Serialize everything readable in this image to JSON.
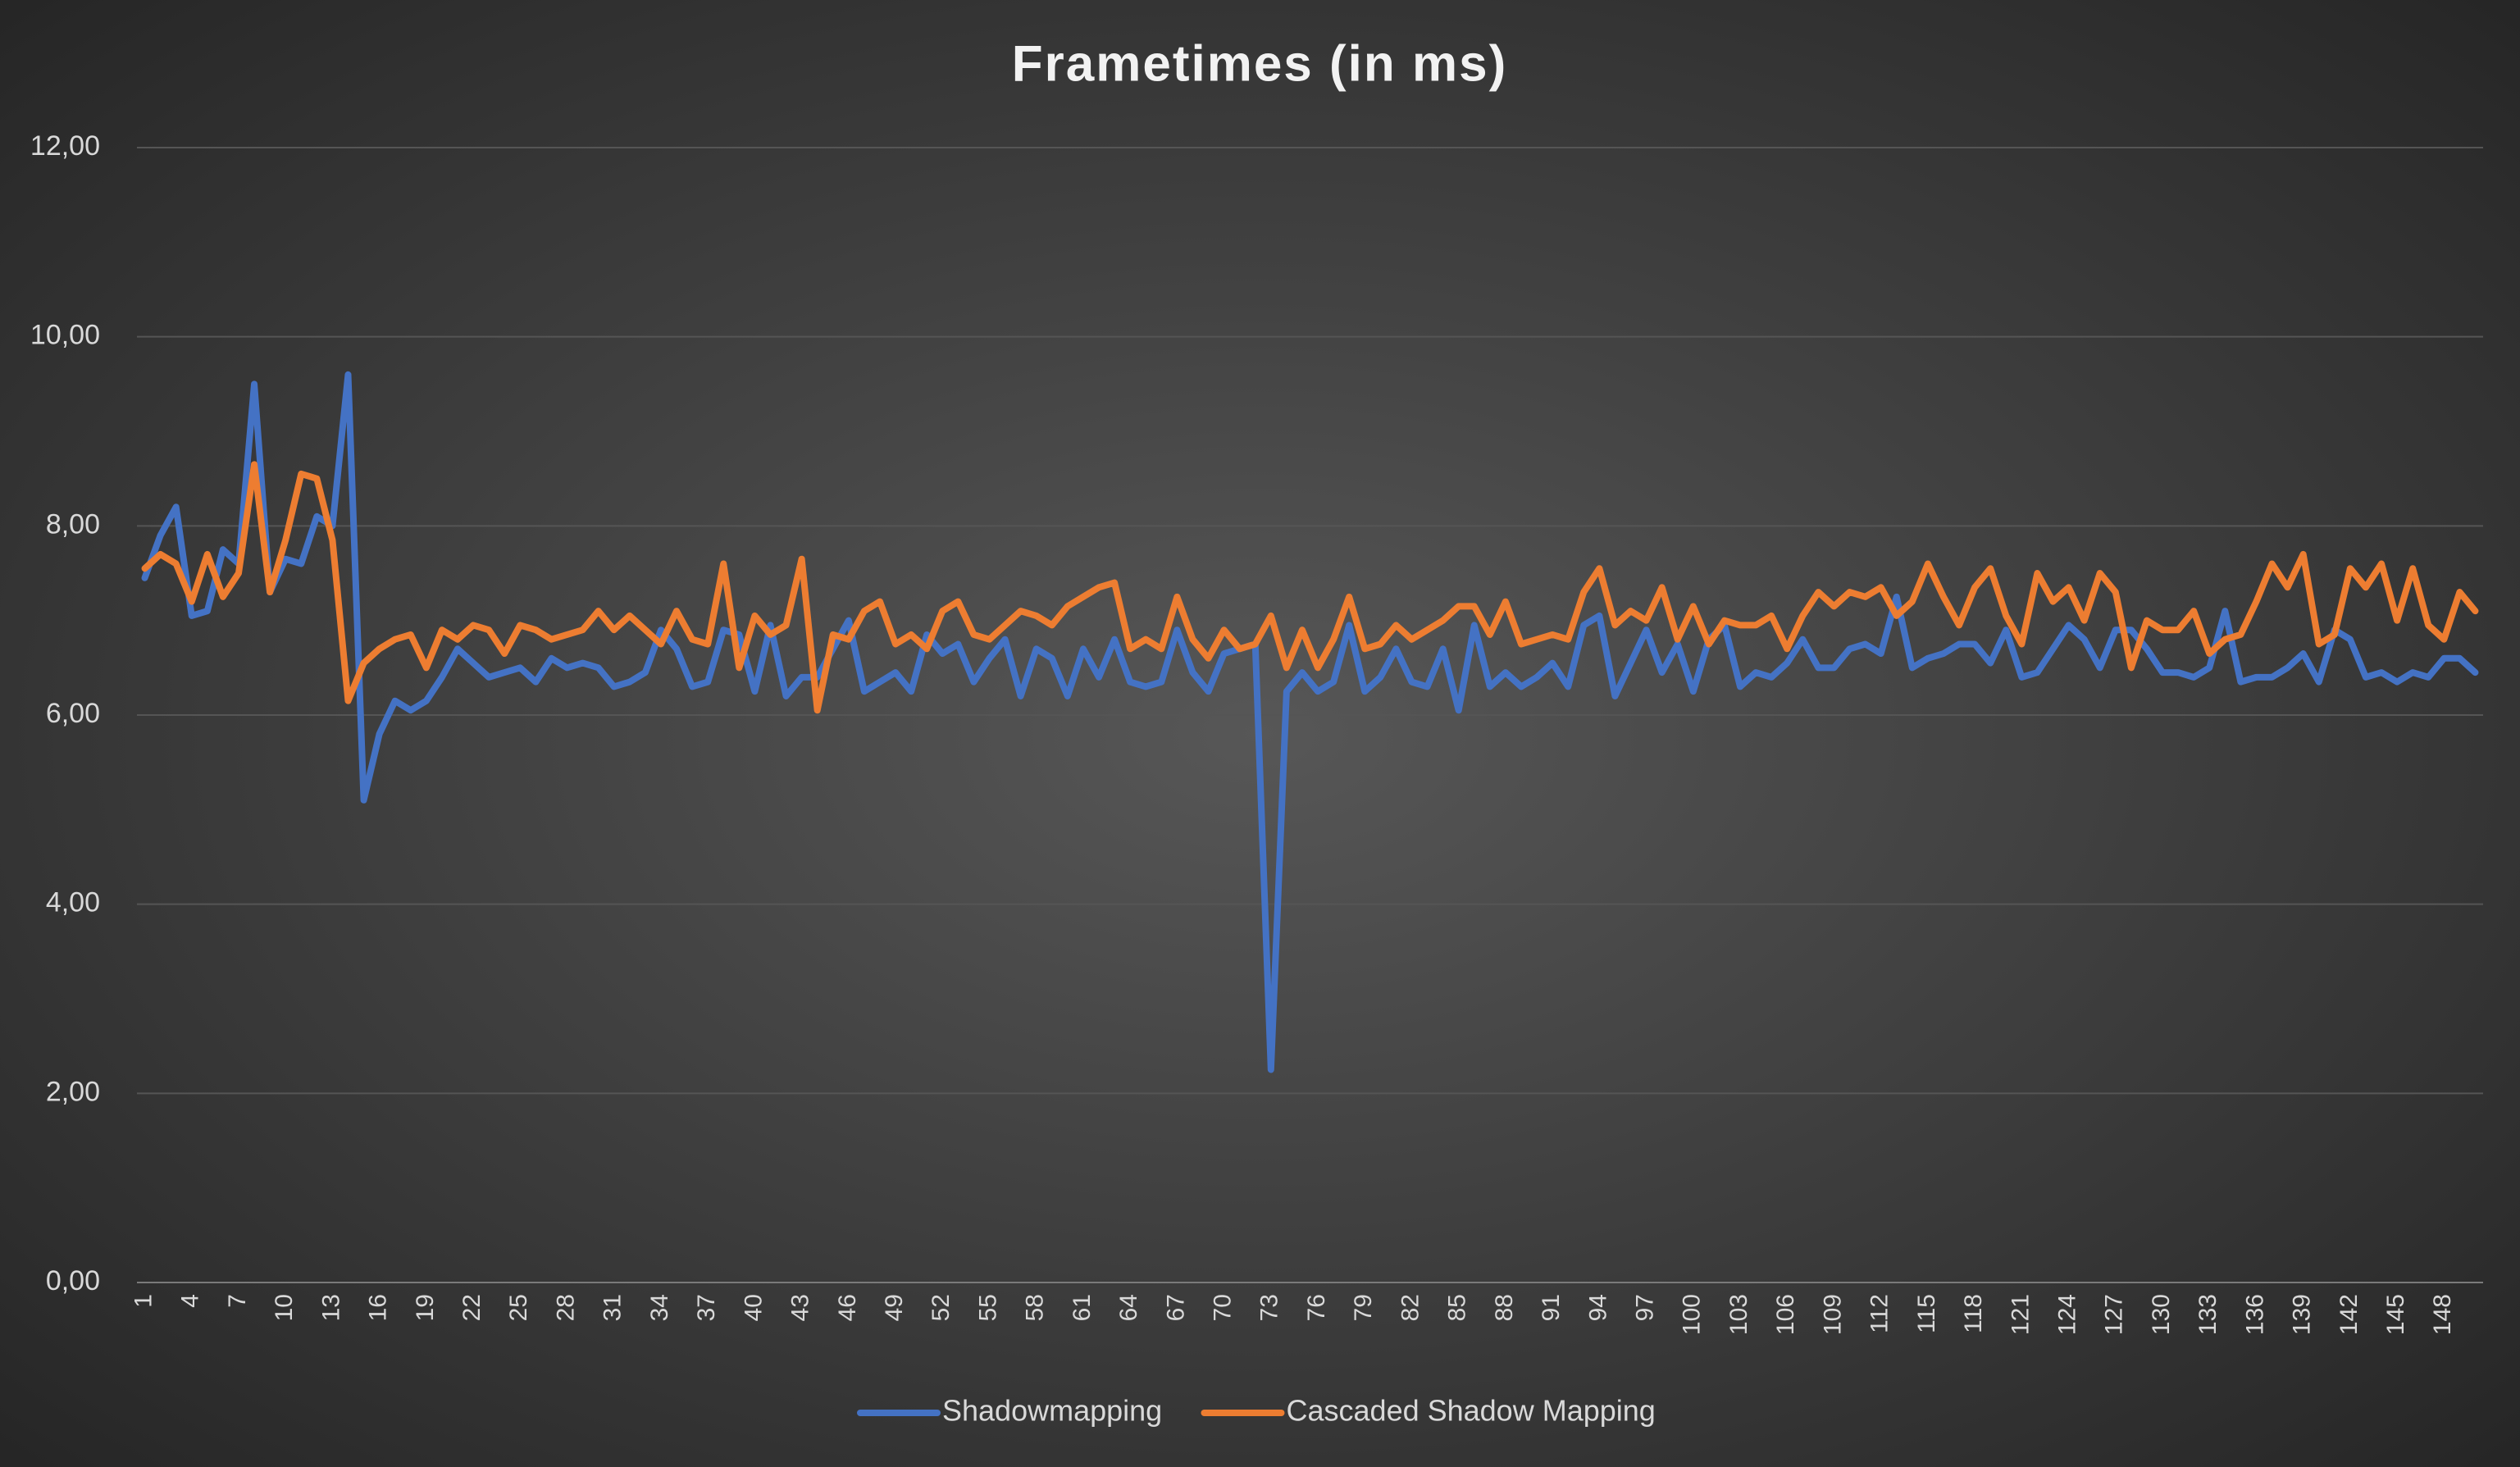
{
  "chart_data": {
    "type": "line",
    "title": "Frametimes (in ms)",
    "categories": [
      1,
      null,
      null,
      4,
      null,
      null,
      7,
      null,
      null,
      10,
      null,
      null,
      13,
      null,
      null,
      16,
      null,
      null,
      19,
      null,
      null,
      22,
      null,
      null,
      25,
      null,
      null,
      28,
      null,
      null,
      31,
      null,
      null,
      34,
      null,
      null,
      37,
      null,
      null,
      40,
      null,
      null,
      43,
      null,
      null,
      46,
      null,
      null,
      49,
      null,
      null,
      52,
      null,
      null,
      55,
      null,
      null,
      58,
      null,
      null,
      61,
      null,
      null,
      64,
      null,
      null,
      67,
      null,
      null,
      70,
      null,
      null,
      73,
      null,
      null,
      76,
      null,
      null,
      79,
      null,
      null,
      82,
      null,
      null,
      85,
      null,
      null,
      88,
      null,
      null,
      91,
      null,
      null,
      94,
      null,
      null,
      97,
      null,
      null,
      100,
      null,
      null,
      103,
      null,
      null,
      106,
      null,
      null,
      109,
      null,
      null,
      112,
      null,
      null,
      115,
      null,
      null,
      118,
      null,
      null,
      121,
      null,
      null,
      124,
      null,
      null,
      127,
      null,
      null,
      130,
      null,
      null,
      133,
      null,
      null,
      136,
      null,
      null,
      139,
      null,
      null,
      142,
      null,
      null,
      145,
      null,
      null,
      148,
      null,
      null
    ],
    "series": [
      {
        "name": "Shadowmapping",
        "color": "#4472c4",
        "values": [
          7.45,
          7.9,
          8.2,
          7.05,
          7.1,
          7.75,
          7.6,
          9.5,
          7.3,
          7.65,
          7.6,
          8.1,
          8.0,
          9.6,
          5.1,
          5.8,
          6.15,
          6.05,
          6.15,
          6.4,
          6.7,
          6.55,
          6.4,
          6.45,
          6.5,
          6.35,
          6.6,
          6.5,
          6.55,
          6.5,
          6.3,
          6.35,
          6.45,
          6.9,
          6.7,
          6.3,
          6.35,
          6.9,
          6.85,
          6.25,
          6.95,
          6.2,
          6.4,
          6.4,
          6.7,
          7.0,
          6.25,
          6.35,
          6.45,
          6.25,
          6.85,
          6.65,
          6.75,
          6.35,
          6.6,
          6.8,
          6.2,
          6.7,
          6.6,
          6.2,
          6.7,
          6.4,
          6.8,
          6.35,
          6.3,
          6.35,
          6.9,
          6.45,
          6.25,
          6.65,
          6.7,
          6.75,
          2.25,
          6.25,
          6.45,
          6.25,
          6.35,
          6.95,
          6.25,
          6.4,
          6.7,
          6.35,
          6.3,
          6.7,
          6.05,
          6.95,
          6.3,
          6.45,
          6.3,
          6.4,
          6.55,
          6.3,
          6.95,
          7.05,
          6.2,
          6.55,
          6.9,
          6.45,
          6.75,
          6.25,
          6.8,
          6.95,
          6.3,
          6.45,
          6.4,
          6.55,
          6.8,
          6.5,
          6.5,
          6.7,
          6.75,
          6.65,
          7.25,
          6.5,
          6.6,
          6.65,
          6.75,
          6.75,
          6.55,
          6.9,
          6.4,
          6.45,
          6.7,
          6.95,
          6.8,
          6.5,
          6.9,
          6.9,
          6.7,
          6.45,
          6.45,
          6.4,
          6.5,
          7.1,
          6.35,
          6.4,
          6.4,
          6.5,
          6.65,
          6.35,
          6.9,
          6.8,
          6.4,
          6.45,
          6.35,
          6.45,
          6.4,
          6.6,
          6.6,
          6.45
        ]
      },
      {
        "name": "Cascaded Shadow Mapping",
        "color": "#ed7d31",
        "values": [
          7.55,
          7.7,
          7.6,
          7.2,
          7.7,
          7.25,
          7.5,
          8.65,
          7.3,
          7.85,
          8.55,
          8.5,
          7.85,
          6.15,
          6.55,
          6.7,
          6.8,
          6.85,
          6.5,
          6.9,
          6.8,
          6.95,
          6.9,
          6.65,
          6.95,
          6.9,
          6.8,
          6.85,
          6.9,
          7.1,
          6.9,
          7.05,
          6.9,
          6.75,
          7.1,
          6.8,
          6.75,
          7.6,
          6.5,
          7.05,
          6.85,
          6.95,
          7.65,
          6.05,
          6.85,
          6.8,
          7.1,
          7.2,
          6.75,
          6.85,
          6.7,
          7.1,
          7.2,
          6.85,
          6.8,
          6.95,
          7.1,
          7.05,
          6.95,
          7.15,
          7.25,
          7.35,
          7.4,
          6.7,
          6.8,
          6.7,
          7.25,
          6.8,
          6.6,
          6.9,
          6.7,
          6.75,
          7.05,
          6.5,
          6.9,
          6.5,
          6.8,
          7.25,
          6.7,
          6.75,
          6.95,
          6.8,
          6.9,
          7.0,
          7.15,
          7.15,
          6.85,
          7.2,
          6.75,
          6.8,
          6.85,
          6.8,
          7.3,
          7.55,
          6.95,
          7.1,
          7.0,
          7.35,
          6.8,
          7.15,
          6.75,
          7.0,
          6.95,
          6.95,
          7.05,
          6.7,
          7.05,
          7.3,
          7.15,
          7.3,
          7.25,
          7.35,
          7.05,
          7.2,
          7.6,
          7.25,
          6.95,
          7.35,
          7.55,
          7.05,
          6.75,
          7.5,
          7.2,
          7.35,
          7.0,
          7.5,
          7.3,
          6.5,
          7.0,
          6.9,
          6.9,
          7.1,
          6.65,
          6.8,
          6.85,
          7.2,
          7.6,
          7.35,
          7.7,
          6.75,
          6.85,
          7.55,
          7.35,
          7.6,
          7.0,
          7.55,
          6.95,
          6.8,
          7.3,
          7.1
        ]
      }
    ],
    "ylim": [
      0,
      12
    ],
    "yticks": [
      {
        "value": 0,
        "label": "0,00"
      },
      {
        "value": 2,
        "label": "2,00"
      },
      {
        "value": 4,
        "label": "4,00"
      },
      {
        "value": 6,
        "label": "6,00"
      },
      {
        "value": 8,
        "label": "8,00"
      },
      {
        "value": 10,
        "label": "10,00"
      },
      {
        "value": 12,
        "label": "12,00"
      }
    ],
    "grid": true,
    "legend": "bottom"
  }
}
